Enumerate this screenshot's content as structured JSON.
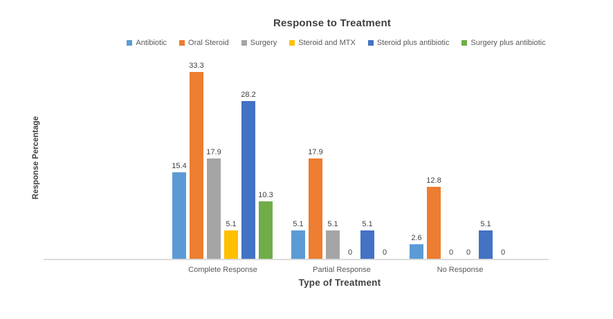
{
  "background_color": "#FFFFFF",
  "chart_data": {
    "type": "bar",
    "title": "Response to Treatment",
    "xlabel": "Type of Treatment",
    "ylabel": "Response Percentage",
    "categories": [
      "Complete Response",
      "Partial Response",
      "No Response"
    ],
    "series": [
      {
        "name": "Antibiotic",
        "color": "#5B9BD5",
        "values": [
          15.4,
          5.1,
          2.6
        ]
      },
      {
        "name": "Oral Steroid",
        "color": "#ED7D31",
        "values": [
          33.3,
          17.9,
          12.8
        ]
      },
      {
        "name": "Surgery",
        "color": "#A5A5A5",
        "values": [
          17.9,
          5.1,
          0
        ]
      },
      {
        "name": "Steroid and MTX",
        "color": "#FFC000",
        "values": [
          5.1,
          0,
          0
        ]
      },
      {
        "name": "Steroid plus antibiotic",
        "color": "#4472C4",
        "values": [
          28.2,
          5.1,
          5.1
        ]
      },
      {
        "name": "Surgery plus antibiotic",
        "color": "#70AD47",
        "values": [
          10.3,
          0,
          0
        ]
      }
    ],
    "data_labels": [
      [
        "15.4",
        "33.3",
        "17.9",
        "5.1",
        "28.2",
        "10.3"
      ],
      [
        "5.1",
        "17.9",
        "5.1",
        "0",
        "5.1",
        "0"
      ],
      [
        "2.6",
        "12.8",
        "0",
        "0",
        "5.1",
        "0"
      ]
    ],
    "ylim": [
      0,
      35
    ],
    "grid": false,
    "legend_position": "top",
    "axis_line_color": "#DCDCDC",
    "title_color": "#404040",
    "label_color": "#595959"
  }
}
